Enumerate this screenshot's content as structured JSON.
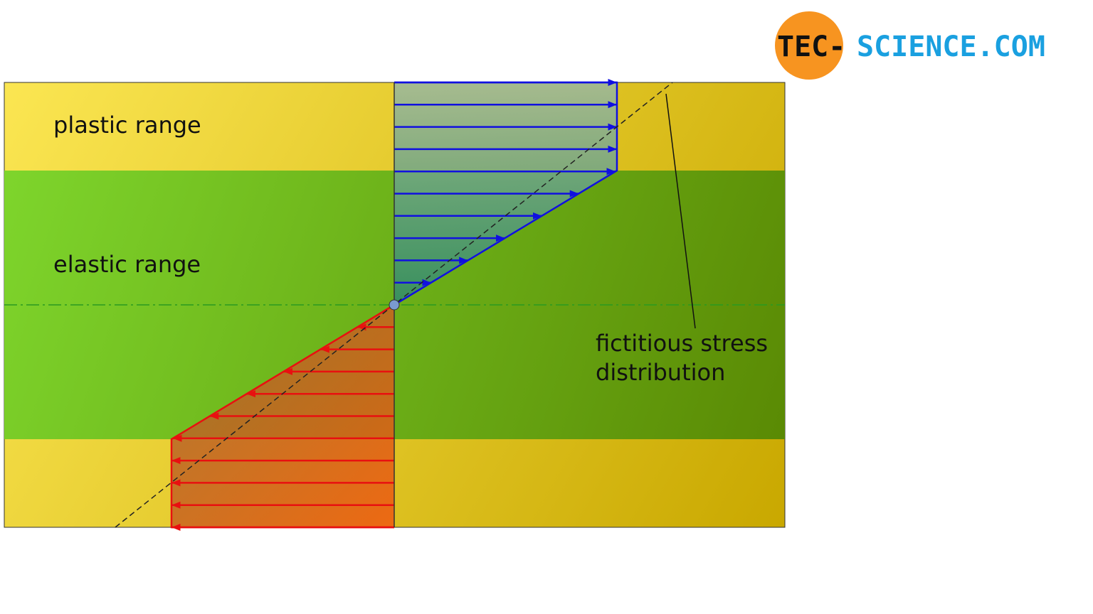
{
  "logo": {
    "left": "TEC-",
    "right": "SCIENCE.COM"
  },
  "labels": {
    "plastic": "plastic range",
    "elastic": "elastic range",
    "fictitious": [
      "fictitious stress",
      "distribution"
    ]
  }
}
